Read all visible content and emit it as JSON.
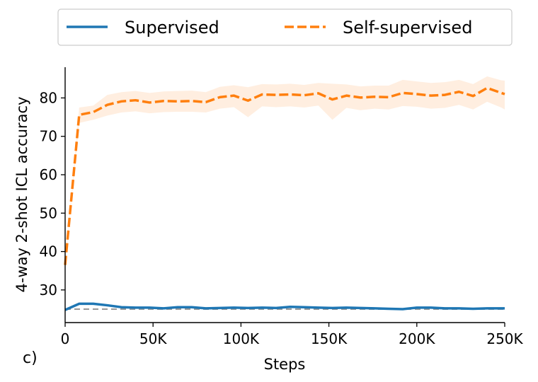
{
  "chart_data": {
    "type": "line",
    "panel_label": "c)",
    "xlabel": "Steps",
    "ylabel": "4-way 2-shot ICL accuracy",
    "xlim": [
      0,
      250000
    ],
    "ylim": [
      21.5,
      88
    ],
    "x_ticks": [
      0,
      50000,
      100000,
      150000,
      200000,
      250000
    ],
    "x_tick_labels": [
      "0",
      "50K",
      "100K",
      "150K",
      "200K",
      "250K"
    ],
    "y_ticks": [
      30,
      40,
      50,
      60,
      70,
      80
    ],
    "y_tick_labels": [
      "30",
      "40",
      "50",
      "60",
      "70",
      "80"
    ],
    "grid": false,
    "legend_position": "top-outside",
    "baseline": {
      "value": 25,
      "color": "#999999",
      "style": "dashed"
    },
    "x": [
      0,
      8000,
      16000,
      24000,
      32000,
      40000,
      48000,
      56000,
      64000,
      72000,
      80000,
      88000,
      96000,
      104000,
      112000,
      120000,
      128000,
      136000,
      144000,
      152000,
      160000,
      168000,
      176000,
      184000,
      192000,
      200000,
      208000,
      216000,
      224000,
      232000,
      240000,
      248000,
      250000
    ],
    "series": [
      {
        "name": "Supervised",
        "color": "#1f77b4",
        "style": "solid",
        "values": [
          24.8,
          26.4,
          26.4,
          26.0,
          25.5,
          25.4,
          25.4,
          25.2,
          25.5,
          25.5,
          25.2,
          25.3,
          25.4,
          25.3,
          25.4,
          25.3,
          25.6,
          25.5,
          25.4,
          25.3,
          25.4,
          25.3,
          25.2,
          25.1,
          25.0,
          25.4,
          25.4,
          25.2,
          25.2,
          25.1,
          25.2,
          25.2,
          25.2
        ],
        "band_low": [
          24.6,
          26.1,
          26.1,
          25.7,
          25.3,
          25.2,
          25.2,
          25.0,
          25.3,
          25.3,
          25.0,
          25.1,
          25.2,
          25.1,
          25.2,
          25.1,
          25.4,
          25.3,
          25.2,
          25.1,
          25.2,
          25.1,
          25.0,
          24.9,
          24.8,
          25.2,
          25.2,
          25.0,
          25.0,
          24.9,
          25.0,
          25.0,
          25.0
        ],
        "band_high": [
          25.0,
          26.7,
          26.7,
          26.3,
          25.7,
          25.6,
          25.6,
          25.4,
          25.7,
          25.7,
          25.4,
          25.5,
          25.6,
          25.5,
          25.6,
          25.5,
          25.8,
          25.7,
          25.6,
          25.5,
          25.6,
          25.5,
          25.4,
          25.3,
          25.2,
          25.6,
          25.6,
          25.4,
          25.4,
          25.3,
          25.4,
          25.4,
          25.4
        ]
      },
      {
        "name": "Self-supervised",
        "color": "#ff7f0e",
        "style": "dashed",
        "values": [
          36.5,
          75.6,
          76.3,
          78.2,
          79.1,
          79.4,
          78.8,
          79.2,
          79.1,
          79.2,
          78.9,
          80.2,
          80.6,
          79.3,
          80.9,
          80.8,
          80.9,
          80.7,
          81.2,
          79.6,
          80.6,
          80.1,
          80.3,
          80.2,
          81.3,
          81.0,
          80.6,
          80.8,
          81.6,
          80.5,
          82.6,
          81.3,
          81.0
        ],
        "band_low": [
          36.0,
          73.5,
          74.3,
          75.4,
          76.2,
          76.5,
          76.0,
          76.3,
          76.4,
          76.4,
          76.2,
          77.2,
          77.6,
          75.0,
          77.8,
          77.6,
          77.8,
          77.5,
          78.0,
          74.3,
          77.4,
          76.8,
          77.2,
          77.0,
          77.9,
          77.7,
          77.2,
          77.4,
          78.2,
          77.0,
          79.0,
          77.5,
          77.0
        ],
        "band_high": [
          37.0,
          77.5,
          78.0,
          80.8,
          81.5,
          81.8,
          81.3,
          81.7,
          81.8,
          81.9,
          81.5,
          82.9,
          83.3,
          82.8,
          83.6,
          83.5,
          83.7,
          83.4,
          83.9,
          83.7,
          83.5,
          83.0,
          83.2,
          83.2,
          84.7,
          84.3,
          83.9,
          84.1,
          84.7,
          83.6,
          85.6,
          84.6,
          84.5
        ]
      }
    ]
  }
}
